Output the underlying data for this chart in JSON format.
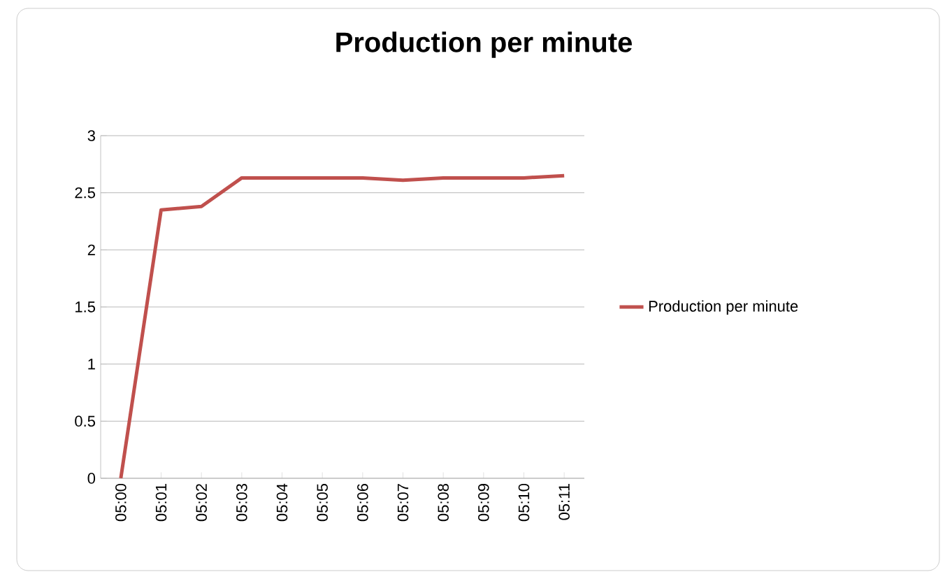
{
  "chart_data": {
    "type": "line",
    "title": "Production per minute",
    "categories": [
      "05:00",
      "05:01",
      "05:02",
      "05:03",
      "05:04",
      "05:05",
      "05:06",
      "05:07",
      "05:08",
      "05:09",
      "05:10",
      "05:11"
    ],
    "series": [
      {
        "name": "Production per minute",
        "color": "#c0504d",
        "values": [
          0,
          2.35,
          2.38,
          2.63,
          2.63,
          2.63,
          2.63,
          2.61,
          2.63,
          2.63,
          2.63,
          2.65
        ]
      }
    ],
    "ylim": [
      0,
      3
    ],
    "yticks": [
      0,
      0.5,
      1,
      1.5,
      2,
      2.5,
      3
    ],
    "grid": "y",
    "legend": "right",
    "marker": "none",
    "line_style": "solid"
  }
}
